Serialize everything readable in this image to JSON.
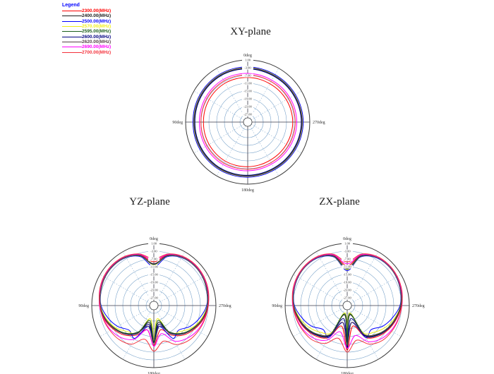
{
  "legend": {
    "title": "Legend",
    "title_color": "#0000ff",
    "entries": [
      {
        "label": "2300.00(MHz)",
        "color": "#ff0000"
      },
      {
        "label": "2400.00(MHz)",
        "color": "#1a1a1a"
      },
      {
        "label": "2500.00(MHz)",
        "color": "#0000ff"
      },
      {
        "label": "2570.00(MHz)",
        "color": "#f0ee1a"
      },
      {
        "label": "2595.00(MHz)",
        "color": "#1c5f1c"
      },
      {
        "label": "2600.00(MHz)",
        "color": "#000080"
      },
      {
        "label": "2620.00(MHz)",
        "color": "#554447"
      },
      {
        "label": "2690.00(MHz)",
        "color": "#ff00ff"
      },
      {
        "label": "2700.00(MHz)",
        "color": "#f4323c"
      }
    ]
  },
  "style": {
    "grid_color": "#6f9cc6",
    "axis_color": "#3a3a4a",
    "outer_ring_color": "#3a3a3a",
    "label_color": "#333333"
  },
  "chart_data": [
    {
      "type": "polar",
      "title": "XY-plane",
      "angle_step_deg": 15,
      "angle_labels": [
        "0deg",
        "90deg",
        "180deg",
        "270deg"
      ],
      "radial_axis": {
        "max_db": 1,
        "min_db": -31,
        "rings": 8,
        "tick_labels": [
          "1.00",
          "-3.00",
          "-7.00",
          "-11.00",
          "-15.00",
          "-19.00",
          "-23.00",
          "-27.00"
        ]
      },
      "series": [
        {
          "name": "2300.00(MHz)",
          "color": "#ff0000",
          "db": [
            -8,
            -7.9,
            -7.8,
            -7.9,
            -8,
            -8.1,
            -8.2,
            -8.1,
            -8,
            -7.9,
            -7.8,
            -7.9,
            -8,
            -8.1,
            -8.2,
            -8.1,
            -8,
            -7.9,
            -7.8,
            -7.9,
            -8,
            -8.1,
            -8.2,
            -8.1
          ]
        },
        {
          "name": "2400.00(MHz)",
          "color": "#1a1a1a",
          "db": [
            -3.3,
            -3.2,
            -3.1,
            -3.2,
            -3.3,
            -3.4,
            -3.5,
            -3.4,
            -3.3,
            -3.2,
            -3.1,
            -3.2,
            -3.3,
            -3.4,
            -3.5,
            -3.4,
            -3.3,
            -3.2,
            -3.1,
            -3.2,
            -3.3,
            -3.4,
            -3.5,
            -3.4
          ]
        },
        {
          "name": "2500.00(MHz)",
          "color": "#0000ff",
          "db": [
            -2.6,
            -2.5,
            -2.4,
            -2.5,
            -2.6,
            -2.7,
            -2.8,
            -2.7,
            -2.6,
            -2.5,
            -2.4,
            -2.5,
            -2.6,
            -2.7,
            -2.8,
            -2.7,
            -2.6,
            -2.5,
            -2.4,
            -2.5,
            -2.6,
            -2.7,
            -2.8,
            -2.7
          ]
        },
        {
          "name": "2570.00(MHz)",
          "color": "#f0ee1a",
          "db": [
            -3,
            -2.9,
            -2.8,
            -2.9,
            -3,
            -3.1,
            -3.2,
            -3.1,
            -3,
            -2.9,
            -2.8,
            -2.9,
            -3,
            -3.1,
            -3.2,
            -3.1,
            -3,
            -2.9,
            -2.8,
            -2.9,
            -3,
            -3.1,
            -3.2,
            -3.1
          ]
        },
        {
          "name": "2595.00(MHz)",
          "color": "#1c5f1c",
          "db": [
            -3.45,
            -3.35,
            -3.25,
            -3.35,
            -3.45,
            -3.55,
            -3.65,
            -3.55,
            -3.45,
            -3.35,
            -3.25,
            -3.35,
            -3.45,
            -3.55,
            -3.65,
            -3.55,
            -3.45,
            -3.35,
            -3.25,
            -3.35,
            -3.45,
            -3.55,
            -3.65,
            -3.55
          ]
        },
        {
          "name": "2600.00(MHz)",
          "color": "#000080",
          "db": [
            -3.6,
            -3.5,
            -3.4,
            -3.5,
            -3.6,
            -3.7,
            -3.8,
            -3.7,
            -3.6,
            -3.5,
            -3.4,
            -3.5,
            -3.6,
            -3.7,
            -3.8,
            -3.7,
            -3.6,
            -3.5,
            -3.4,
            -3.5,
            -3.6,
            -3.7,
            -3.8,
            -3.7
          ]
        },
        {
          "name": "2620.00(MHz)",
          "color": "#554447",
          "db": [
            -3.15,
            -3.05,
            -2.95,
            -3.05,
            -3.15,
            -3.25,
            -3.35,
            -3.25,
            -3.15,
            -3.05,
            -2.95,
            -3.05,
            -3.15,
            -3.25,
            -3.35,
            -3.25,
            -3.15,
            -3.05,
            -2.95,
            -3.05,
            -3.15,
            -3.25,
            -3.35,
            -3.25
          ]
        },
        {
          "name": "2690.00(MHz)",
          "color": "#ff00ff",
          "db": [
            -5.9,
            -5.8,
            -5.7,
            -5.8,
            -5.9,
            -6,
            -6.1,
            -6,
            -5.9,
            -5.8,
            -5.7,
            -5.8,
            -5.9,
            -6,
            -6.1,
            -6,
            -5.9,
            -5.8,
            -5.7,
            -5.8,
            -5.9,
            -6,
            -6.1,
            -6
          ]
        },
        {
          "name": "2700.00(MHz)",
          "color": "#f4323c",
          "db": [
            -6.7,
            -6.6,
            -6.5,
            -6.6,
            -6.7,
            -6.8,
            -6.9,
            -6.8,
            -6.7,
            -6.6,
            -6.5,
            -6.6,
            -6.7,
            -6.8,
            -6.9,
            -6.8,
            -6.7,
            -6.6,
            -6.5,
            -6.6,
            -6.7,
            -6.8,
            -6.9,
            -6.8
          ]
        }
      ]
    },
    {
      "type": "polar",
      "title": "YZ-plane",
      "angle_step_deg": 15,
      "angle_labels": [
        "0deg",
        "90deg",
        "180deg",
        "270deg"
      ],
      "radial_axis": {
        "max_db": 1,
        "min_db": -31,
        "rings": 8,
        "tick_labels": [
          "1.00",
          "-3.00",
          "-7.00",
          "-11.00",
          "-15.00",
          "-19.00",
          "-23.00",
          "-27.00"
        ]
      },
      "series": [
        {
          "name": "2300.00(MHz)",
          "color": "#ff0000",
          "db": [
            -8.5,
            -4,
            -1.9,
            -1.3,
            -1.5,
            -2.3,
            -3,
            -4.5,
            -6.8,
            -9.5,
            -13.5,
            -18,
            -10.5,
            -18,
            -13.5,
            -9.5,
            -6.8,
            -4.5,
            -3,
            -2.3,
            -1.5,
            -1.3,
            -1.9,
            -4
          ]
        },
        {
          "name": "2400.00(MHz)",
          "color": "#1a1a1a",
          "db": [
            -9.5,
            -4.5,
            -2.2,
            -1.6,
            -1.8,
            -2.6,
            -3.4,
            -5,
            -7.5,
            -10.5,
            -15,
            -22,
            -12,
            -22,
            -15,
            -10.5,
            -7.5,
            -5,
            -3.4,
            -2.6,
            -1.8,
            -1.6,
            -2.2,
            -4.5
          ]
        },
        {
          "name": "2500.00(MHz)",
          "color": "#0000ff",
          "db": [
            -11,
            -5,
            -2.5,
            -1.8,
            -2,
            -2.8,
            -3.8,
            -6.5,
            -9.5,
            -13,
            -11.5,
            -20,
            -14,
            -20,
            -11.5,
            -13,
            -9.5,
            -6.5,
            -3.8,
            -2.8,
            -2,
            -1.8,
            -2.5,
            -5
          ]
        },
        {
          "name": "2570.00(MHz)",
          "color": "#f0ee1a",
          "db": [
            -10,
            -4.6,
            -2.3,
            -1.7,
            -1.9,
            -2.7,
            -3.5,
            -5.5,
            -8.2,
            -12,
            -14.5,
            -24,
            -13,
            -24,
            -14.5,
            -12,
            -8.2,
            -5.5,
            -3.5,
            -2.7,
            -1.9,
            -1.7,
            -2.3,
            -4.6
          ]
        },
        {
          "name": "2595.00(MHz)",
          "color": "#1c5f1c",
          "db": [
            -9.8,
            -4.5,
            -2.2,
            -1.6,
            -1.8,
            -2.6,
            -3.4,
            -5.1,
            -7.7,
            -10.8,
            -15.5,
            -23,
            -12.5,
            -23,
            -15.5,
            -10.8,
            -7.7,
            -5.1,
            -3.4,
            -2.6,
            -1.8,
            -1.6,
            -2.2,
            -4.5
          ]
        },
        {
          "name": "2600.00(MHz)",
          "color": "#000080",
          "db": [
            -9.6,
            -4.4,
            -2.1,
            -1.5,
            -1.7,
            -2.5,
            -3.3,
            -4.9,
            -7.3,
            -10.2,
            -14.5,
            -21,
            -11.8,
            -21,
            -14.5,
            -10.2,
            -7.3,
            -4.9,
            -3.3,
            -2.5,
            -1.7,
            -1.5,
            -2.1,
            -4.4
          ]
        },
        {
          "name": "2620.00(MHz)",
          "color": "#554447",
          "db": [
            -9.4,
            -4.3,
            -2.15,
            -1.55,
            -1.75,
            -2.55,
            -3.35,
            -5,
            -7.4,
            -10.4,
            -14.8,
            -20,
            -11.5,
            -20,
            -14.8,
            -10.4,
            -7.4,
            -5,
            -3.35,
            -2.55,
            -1.75,
            -1.55,
            -2.15,
            -4.3
          ]
        },
        {
          "name": "2690.00(MHz)",
          "color": "#ff00ff",
          "db": [
            -7.8,
            -3.8,
            -1.8,
            -1.2,
            -1.4,
            -2.2,
            -3,
            -4.2,
            -5.5,
            -7.5,
            -11,
            -18,
            -10,
            -16,
            -9.8,
            -7,
            -5.2,
            -4,
            -2.9,
            -2.1,
            -1.4,
            -1.2,
            -1.8,
            -3.8
          ]
        },
        {
          "name": "2700.00(MHz)",
          "color": "#f4323c",
          "db": [
            -7,
            -3.5,
            -1.6,
            -1,
            -1.2,
            -2,
            -3.2,
            -4,
            -5,
            -6,
            -8,
            -13,
            -7.5,
            -12,
            -7.8,
            -5.6,
            -4.6,
            -3.8,
            -3,
            -1.9,
            -1.2,
            -1,
            -1.6,
            -3.5
          ]
        }
      ]
    },
    {
      "type": "polar",
      "title": "ZX-plane",
      "angle_step_deg": 15,
      "angle_labels": [
        "0deg",
        "90deg",
        "180deg",
        "270deg"
      ],
      "radial_axis": {
        "max_db": 1,
        "min_db": -31,
        "rings": 8,
        "tick_labels": [
          "1.00",
          "-3.00",
          "-7.00",
          "-11.00",
          "-15.00",
          "-19.00",
          "-23.00",
          "-27.00"
        ]
      },
      "series": [
        {
          "name": "2300.00(MHz)",
          "color": "#ff0000",
          "db": [
            -10.5,
            -4.2,
            -1.8,
            -1.2,
            -1.4,
            -2.2,
            -3.1,
            -4.7,
            -6.4,
            -8.6,
            -12,
            -20,
            -8,
            -20,
            -12,
            -8.6,
            -6.4,
            -4.7,
            -3.1,
            -2.2,
            -1.4,
            -1.2,
            -1.8,
            -4.2
          ]
        },
        {
          "name": "2400.00(MHz)",
          "color": "#1a1a1a",
          "db": [
            -12,
            -4.8,
            -2,
            -1.4,
            -1.6,
            -2.4,
            -3.4,
            -5.2,
            -7,
            -9.5,
            -13.5,
            -26,
            -9,
            -26,
            -13.5,
            -9.5,
            -7,
            -5.2,
            -3.4,
            -2.4,
            -1.6,
            -1.4,
            -2,
            -4.8
          ]
        },
        {
          "name": "2500.00(MHz)",
          "color": "#0000ff",
          "db": [
            -13,
            -5.2,
            -2.3,
            -1.6,
            -1.8,
            -2.6,
            -3.8,
            -6.8,
            -9.8,
            -13.5,
            -12,
            -22,
            -12,
            -22,
            -12,
            -13.5,
            -9.8,
            -6.8,
            -3.8,
            -2.6,
            -1.8,
            -1.6,
            -2.3,
            -5.2
          ]
        },
        {
          "name": "2570.00(MHz)",
          "color": "#f0ee1a",
          "db": [
            -12.5,
            -4.9,
            -2.1,
            -1.5,
            -1.7,
            -2.5,
            -3.5,
            -5.7,
            -8.4,
            -11.5,
            -15,
            -27,
            -10,
            -27,
            -15,
            -11.5,
            -8.4,
            -5.7,
            -3.5,
            -2.5,
            -1.7,
            -1.5,
            -2.1,
            -4.9
          ]
        },
        {
          "name": "2595.00(MHz)",
          "color": "#1c5f1c",
          "db": [
            -12.2,
            -4.8,
            -2.05,
            -1.45,
            -1.65,
            -2.45,
            -3.45,
            -5.3,
            -7.3,
            -10,
            -14,
            -26.5,
            -9.5,
            -26.5,
            -14,
            -10,
            -7.3,
            -5.3,
            -3.45,
            -2.45,
            -1.65,
            -1.45,
            -2.05,
            -4.8
          ]
        },
        {
          "name": "2600.00(MHz)",
          "color": "#000080",
          "db": [
            -11.8,
            -4.6,
            -1.95,
            -1.35,
            -1.55,
            -2.35,
            -3.3,
            -5,
            -6.8,
            -9.2,
            -13,
            -24,
            -9,
            -24,
            -13,
            -9.2,
            -6.8,
            -5,
            -3.3,
            -2.35,
            -1.55,
            -1.35,
            -1.95,
            -4.6
          ]
        },
        {
          "name": "2620.00(MHz)",
          "color": "#554447",
          "db": [
            -11.5,
            -4.5,
            -2,
            -1.4,
            -1.6,
            -2.4,
            -3.35,
            -5.1,
            -7.1,
            -9.8,
            -13.8,
            -22,
            -10.5,
            -22,
            -13.8,
            -9.8,
            -7.1,
            -5.1,
            -3.35,
            -2.4,
            -1.6,
            -1.4,
            -2,
            -4.5
          ]
        },
        {
          "name": "2690.00(MHz)",
          "color": "#ff00ff",
          "db": [
            -9.5,
            -4,
            -1.7,
            -1.15,
            -1.35,
            -2.1,
            -2.9,
            -4.1,
            -5.3,
            -7,
            -10.5,
            -17,
            -9,
            -15,
            -9.5,
            -6.6,
            -5,
            -3.9,
            -2.8,
            -2,
            -1.3,
            -1.1,
            -1.7,
            -4
          ]
        },
        {
          "name": "2700.00(MHz)",
          "color": "#f4323c",
          "db": [
            -8.5,
            -3.6,
            -1.5,
            -1,
            -1.2,
            -1.9,
            -3.1,
            -3.9,
            -4.8,
            -5.8,
            -8.5,
            -13.5,
            -7,
            -12.5,
            -8,
            -5.5,
            -4.5,
            -3.7,
            -2.9,
            -1.8,
            -1.15,
            -0.95,
            -1.5,
            -3.6
          ]
        }
      ]
    }
  ]
}
